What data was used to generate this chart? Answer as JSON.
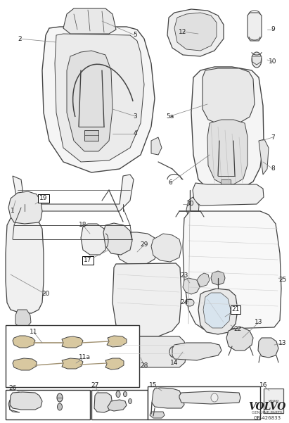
{
  "bg_color": "#ffffff",
  "line_color": "#444444",
  "light_line": "#888888",
  "text_color": "#222222",
  "volvo_text": "VOLVO",
  "genuine_parts": "GENUINE PARTS",
  "part_number": "GR-426833",
  "figsize": [
    4.11,
    6.01
  ],
  "dpi": 100
}
